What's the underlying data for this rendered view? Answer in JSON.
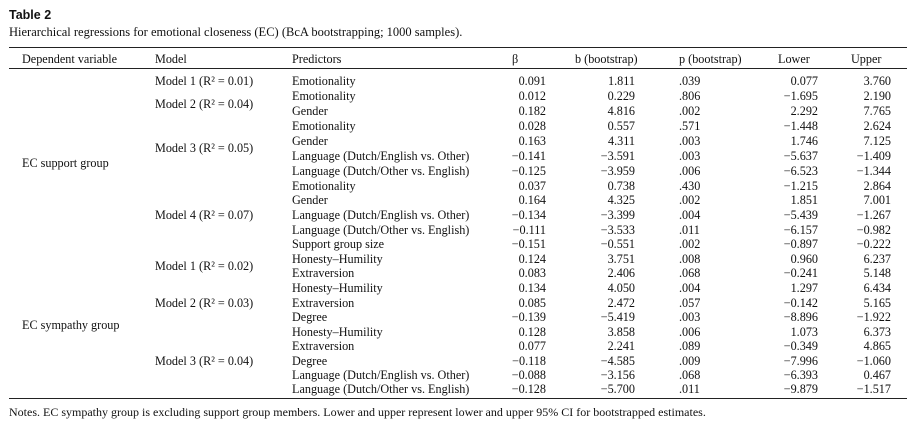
{
  "table": {
    "label": "Table 2",
    "caption": "Hierarchical regressions for emotional closeness (EC) (BcA bootstrapping; 1000 samples).",
    "headers": [
      "Dependent variable",
      "Model",
      "Predictors",
      "β",
      "b (bootstrap)",
      "p (bootstrap)",
      "Lower",
      "Upper"
    ],
    "dependent_variables": [
      "EC support group",
      "EC sympathy group"
    ],
    "models": [
      "Model 1 (R² = 0.01)",
      "Model 2 (R² = 0.04)",
      "Model 3 (R² = 0.05)",
      "Model 4 (R² = 0.07)",
      "Model 1 (R² = 0.02)",
      "Model 2 (R² = 0.03)",
      "Model 3 (R² = 0.04)"
    ],
    "rows": [
      [
        "Emotionality",
        "0.091",
        "1.811",
        ".039",
        "0.077",
        "3.760"
      ],
      [
        "Emotionality",
        "0.012",
        "0.229",
        ".806",
        "−1.695",
        "2.190"
      ],
      [
        "Gender",
        "0.182",
        "4.816",
        ".002",
        "2.292",
        "7.765"
      ],
      [
        "Emotionality",
        "0.028",
        "0.557",
        ".571",
        "−1.448",
        "2.624"
      ],
      [
        "Gender",
        "0.163",
        "4.311",
        ".003",
        "1.746",
        "7.125"
      ],
      [
        "Language (Dutch/English vs. Other)",
        "−0.141",
        "−3.591",
        ".003",
        "−5.637",
        "−1.409"
      ],
      [
        "Language (Dutch/Other vs. English)",
        "−0.125",
        "−3.959",
        ".006",
        "−6.523",
        "−1.344"
      ],
      [
        "Emotionality",
        "0.037",
        "0.738",
        ".430",
        "−1.215",
        "2.864"
      ],
      [
        "Gender",
        "0.164",
        "4.325",
        ".002",
        "1.851",
        "7.001"
      ],
      [
        "Language (Dutch/English vs. Other)",
        "−0.134",
        "−3.399",
        ".004",
        "−5.439",
        "−1.267"
      ],
      [
        "Language (Dutch/Other vs. English)",
        "−0.111",
        "−3.533",
        ".011",
        "−6.157",
        "−0.982"
      ],
      [
        "Support group size",
        "−0.151",
        "−0.551",
        ".002",
        "−0.897",
        "−0.222"
      ],
      [
        "Honesty–Humility",
        "0.124",
        "3.751",
        ".008",
        "0.960",
        "6.237"
      ],
      [
        "Extraversion",
        "0.083",
        "2.406",
        ".068",
        "−0.241",
        "5.148"
      ],
      [
        "Honesty–Humility",
        "0.134",
        "4.050",
        ".004",
        "1.297",
        "6.434"
      ],
      [
        "Extraversion",
        "0.085",
        "2.472",
        ".057",
        "−0.142",
        "5.165"
      ],
      [
        "Degree",
        "−0.139",
        "−5.419",
        ".003",
        "−8.896",
        "−1.922"
      ],
      [
        "Honesty–Humility",
        "0.128",
        "3.858",
        ".006",
        "1.073",
        "6.373"
      ],
      [
        "Extraversion",
        "0.077",
        "2.241",
        ".089",
        "−0.349",
        "4.865"
      ],
      [
        "Degree",
        "−0.118",
        "−4.585",
        ".009",
        "−7.996",
        "−1.060"
      ],
      [
        "Language (Dutch/English vs. Other)",
        "−0.088",
        "−3.156",
        ".068",
        "−6.393",
        "0.467"
      ],
      [
        "Language (Dutch/Other vs. English)",
        "−0.128",
        "−5.700",
        ".011",
        "−9.879",
        "−1.517"
      ]
    ],
    "notes": "Notes. EC sympathy group is excluding support group members. Lower and upper represent lower and upper 95% CI for bootstrapped estimates."
  }
}
